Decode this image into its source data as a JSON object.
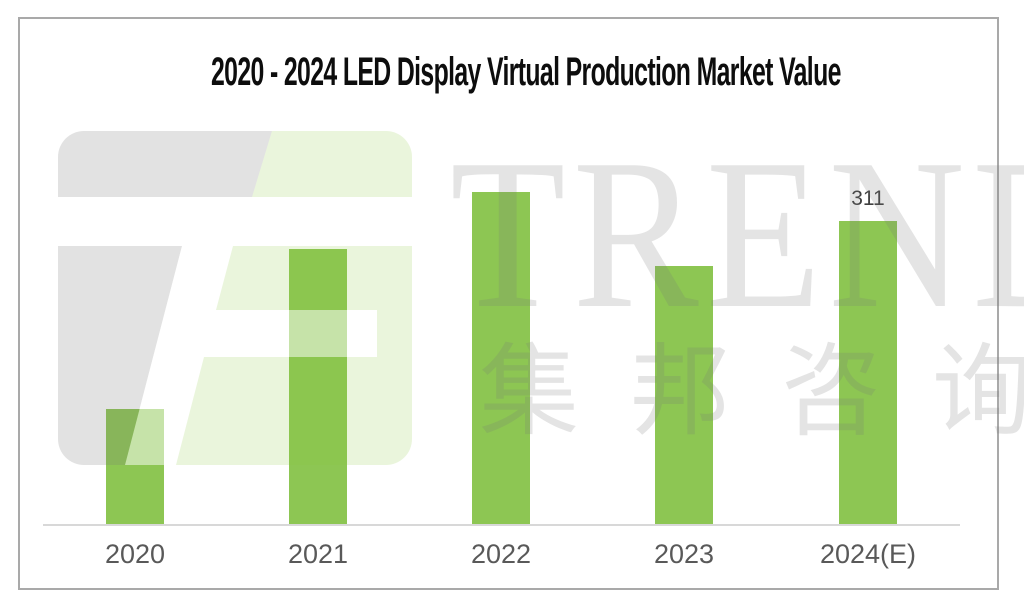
{
  "frame": {
    "border_color": "#A9A9A9",
    "background": "#FFFFFF"
  },
  "title": {
    "text": "2020 - 2024 LED Display Virtual Production Market Value",
    "color": "#0D0D0D"
  },
  "chart_data": {
    "type": "bar",
    "title": "2020 - 2024 LED Display Virtual Production Market Value",
    "categories": [
      "2020",
      "2021",
      "2022",
      "2023",
      "2024(E)"
    ],
    "values": [
      119,
      282,
      341,
      265,
      311
    ],
    "bar_labels": [
      "",
      "",
      "",
      "",
      "311"
    ],
    "bar_color": "#8DC653",
    "axis_line_color": "#D8D8D8",
    "tick_label_color": "#595959",
    "value_label_color": "#404040",
    "ylim": [
      0,
      350
    ],
    "gridlines": "none",
    "legend": "none",
    "y_axis": "hidden"
  },
  "watermark": {
    "brand_text": "TREND",
    "cjk_text": "集邦咨询",
    "letter_color": "rgba(120,120,120,0.20)",
    "logo_gray": "rgba(120,120,120,0.21)",
    "logo_green": "rgba(141,198,63,0.18)",
    "logo_white": "rgba(255,255,255,0.50)"
  }
}
